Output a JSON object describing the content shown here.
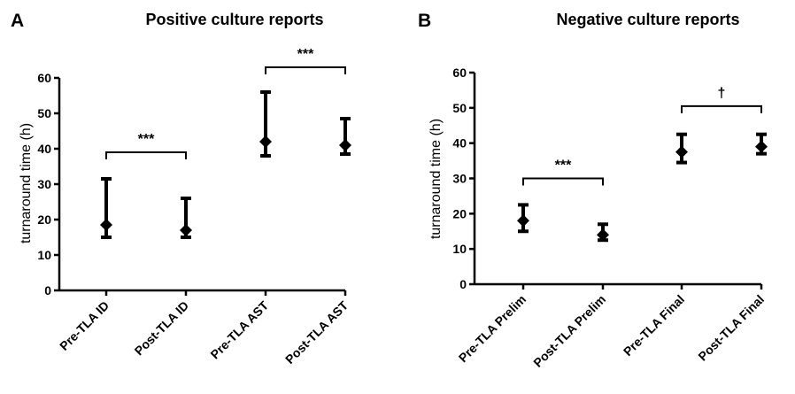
{
  "chart_data": [
    {
      "type": "error-range",
      "panel_label": "A",
      "title": "Positive culture reports",
      "xlabel": "",
      "ylabel": "turnaround time (h)",
      "ylim": [
        0,
        60
      ],
      "yticks": [
        0,
        10,
        20,
        30,
        40,
        50,
        60
      ],
      "categories": [
        "Pre-TLA ID",
        "Post-TLA ID",
        "Pre-TLA AST",
        "Post-TLA AST"
      ],
      "median": [
        18.5,
        17,
        42,
        41
      ],
      "lower": [
        15,
        15,
        38,
        38.5
      ],
      "upper": [
        31.5,
        26,
        56,
        48.5
      ],
      "significance": [
        {
          "from": 0,
          "to": 1,
          "y": 39,
          "label": "***"
        },
        {
          "from": 2,
          "to": 3,
          "y": 63,
          "label": "***"
        }
      ]
    },
    {
      "type": "error-range",
      "panel_label": "B",
      "title": "Negative culture reports",
      "xlabel": "",
      "ylabel": "turnaround time (h)",
      "ylim": [
        0,
        60
      ],
      "yticks": [
        0,
        10,
        20,
        30,
        40,
        50,
        60
      ],
      "categories": [
        "Pre-TLA Prelim",
        "Post-TLA Prelim",
        "Pre-TLA Final",
        "Post-TLA Final"
      ],
      "median": [
        18,
        14,
        37.5,
        39
      ],
      "lower": [
        15,
        12.5,
        34.5,
        37
      ],
      "upper": [
        22.5,
        17,
        42.5,
        42.5
      ],
      "significance": [
        {
          "from": 0,
          "to": 1,
          "y": 30,
          "label": "***"
        },
        {
          "from": 2,
          "to": 3,
          "y": 50.5,
          "label": "†"
        }
      ]
    }
  ]
}
